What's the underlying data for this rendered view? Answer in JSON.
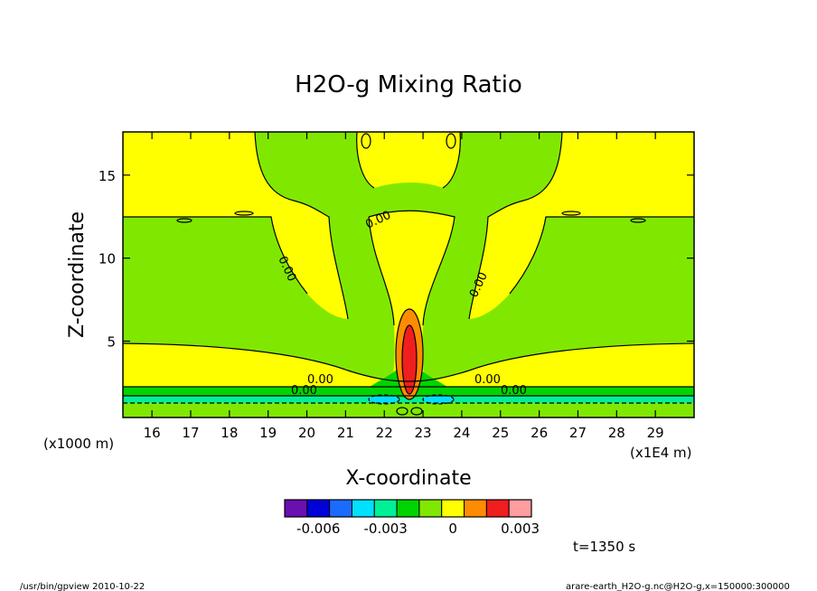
{
  "chart_data": {
    "type": "contour",
    "title": "H2O-g Mixing Ratio",
    "xlabel": "X-coordinate",
    "ylabel": "Z-coordinate",
    "x_unit_label": "(x1E4 m)",
    "y_unit_label": "(x1000 m)",
    "xlim": [
      15.25,
      30.0
    ],
    "ylim": [
      0.4,
      17.6
    ],
    "x_ticks": [
      16,
      17,
      18,
      19,
      20,
      21,
      22,
      23,
      24,
      25,
      26,
      27,
      28,
      29
    ],
    "y_ticks": [
      5,
      10,
      15
    ],
    "contour_labels": [
      "0.00",
      "0.00",
      "0.00",
      "0.00",
      "0.00",
      "0.00",
      "0.00"
    ],
    "colorbar": {
      "colors": [
        "#6a0fb0",
        "#0000d8",
        "#1a6cff",
        "#00e0ff",
        "#00f098",
        "#00d400",
        "#80e800",
        "#ffff00",
        "#ff8c00",
        "#f01e1e",
        "#ff9da0"
      ],
      "tick_labels": [
        "-0.006",
        "-0.003",
        "0",
        "0.003"
      ],
      "tick_values": [
        -0.006,
        -0.003,
        0,
        0.003
      ],
      "range": [
        -0.0075,
        0.0035
      ]
    },
    "field_colors": {
      "background": "#80e800",
      "positive": "#ffff00",
      "core_orange": "#ff8c00",
      "core_red": "#f01e1e",
      "negative_green": "#00d400",
      "negative_teal": "#00f098",
      "negative_cyan": "#00e0ff"
    }
  },
  "annotations": {
    "time_label": "t=1350 s",
    "footer_left": "/usr/bin/gpview  2010-10-22",
    "footer_right": "arare-earth_H2O-g.nc@H2O-g,x=150000:300000"
  }
}
